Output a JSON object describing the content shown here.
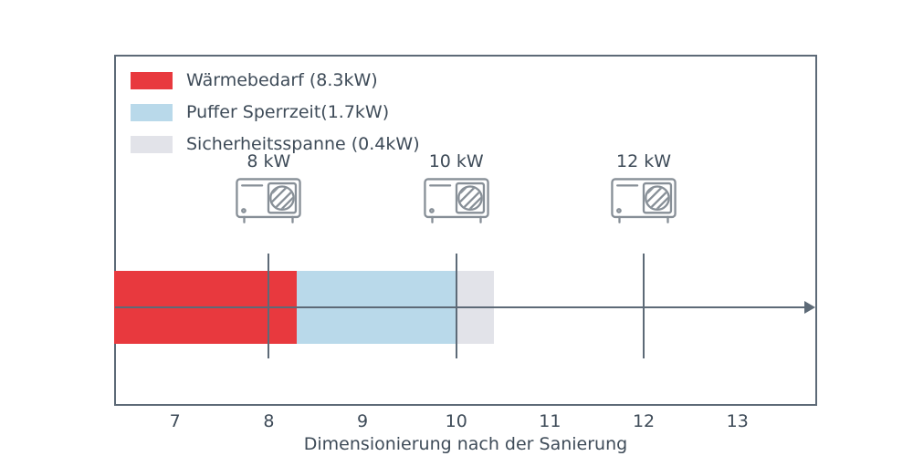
{
  "colors": {
    "axis": "#5d6a77",
    "text": "#3e4b58",
    "icon_stroke": "#878f97"
  },
  "chart_data": {
    "type": "bar",
    "orientation": "horizontal-stacked",
    "xlabel": "Dimensionierung nach der Sanierung",
    "xlim": [
      6.35,
      13.85
    ],
    "xticks": [
      7,
      8,
      9,
      10,
      11,
      12,
      13
    ],
    "grid": false,
    "legend_position": "upper-left",
    "segments": [
      {
        "name": "waermebedarf",
        "label": "Wärmebedarf (8.3kW)",
        "value_kw": 8.3,
        "from": 6.35,
        "to": 8.3,
        "color": "#e8393e"
      },
      {
        "name": "puffer-sperrzeit",
        "label": "Puffer Sperrzeit(1.7kW)",
        "value_kw": 1.7,
        "from": 8.3,
        "to": 10.0,
        "color": "#b9d9ea"
      },
      {
        "name": "sicherheitsspanne",
        "label": "Sicherheitsspanne (0.4kW)",
        "value_kw": 0.4,
        "from": 10.0,
        "to": 10.4,
        "color": "#e2e3e9"
      }
    ],
    "markers": [
      {
        "value": 8,
        "label": "8 kW",
        "icon": "heat-pump-icon"
      },
      {
        "value": 10,
        "label": "10 kW",
        "icon": "heat-pump-icon"
      },
      {
        "value": 12,
        "label": "12 kW",
        "icon": "heat-pump-icon"
      }
    ]
  }
}
